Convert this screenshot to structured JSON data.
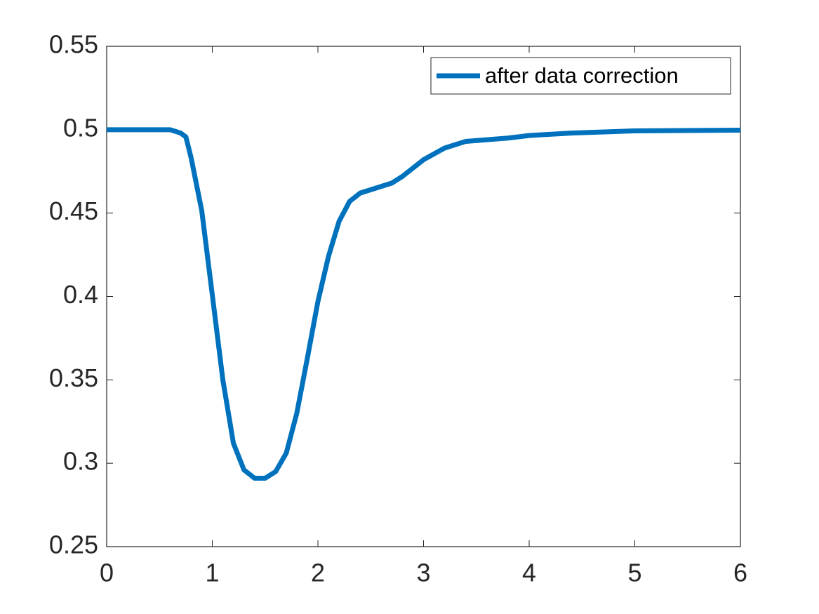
{
  "chart_data": {
    "type": "line",
    "x": [
      0,
      0.5,
      0.6,
      0.7,
      0.75,
      0.8,
      0.9,
      1.0,
      1.1,
      1.2,
      1.3,
      1.4,
      1.5,
      1.6,
      1.7,
      1.8,
      1.9,
      2.0,
      2.1,
      2.2,
      2.3,
      2.4,
      2.5,
      2.6,
      2.7,
      2.8,
      2.9,
      3.0,
      3.2,
      3.4,
      3.6,
      3.8,
      4.0,
      4.4,
      5.0,
      6.0
    ],
    "series": [
      {
        "name": "after data correction",
        "color": "#0072bd",
        "values": [
          0.5,
          0.5,
          0.5,
          0.498,
          0.4957,
          0.483,
          0.4515,
          0.401,
          0.35,
          0.312,
          0.296,
          0.291,
          0.291,
          0.295,
          0.306,
          0.33,
          0.363,
          0.397,
          0.424,
          0.445,
          0.457,
          0.462,
          0.464,
          0.466,
          0.468,
          0.472,
          0.477,
          0.482,
          0.489,
          0.493,
          0.494,
          0.495,
          0.4965,
          0.498,
          0.4993,
          0.4997
        ]
      }
    ],
    "xlim": [
      0,
      6
    ],
    "xticks": [
      0,
      1,
      2,
      3,
      4,
      5,
      6
    ],
    "ylim": [
      0.25,
      0.55
    ],
    "yticks": [
      0.25,
      0.3,
      0.35,
      0.4,
      0.45,
      0.5,
      0.55
    ],
    "legend": "top-right"
  }
}
